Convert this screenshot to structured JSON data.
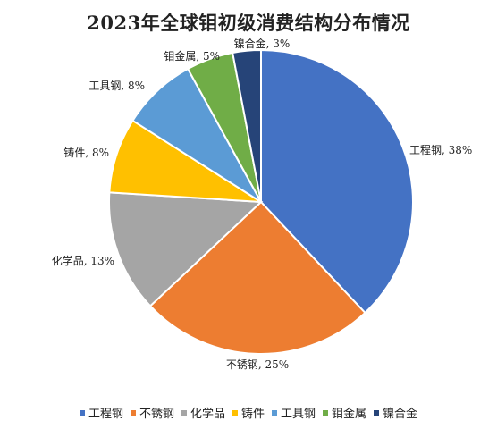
{
  "chart_data": {
    "type": "pie",
    "title": "2023年全球钼初级消费结构分布情况",
    "categories": [
      "工程钢",
      "不锈钢",
      "化学品",
      "铸件",
      "工具钢",
      "钼金属",
      "镍合金"
    ],
    "values": [
      38,
      25,
      13,
      8,
      8,
      5,
      3
    ],
    "value_unit": "%",
    "colors": [
      "#4472C4",
      "#ED7D31",
      "#A5A5A5",
      "#FFC000",
      "#5B9BD5",
      "#70AD47",
      "#264478"
    ],
    "data_labels": [
      "工程钢, 38%",
      "不锈钢, 25%",
      "化学品, 13%",
      "铸件, 8%",
      "工具钢, 8%",
      "钼金属, 5%",
      "镍合金, 3%"
    ],
    "start_angle": "12 o'clock",
    "direction": "clockwise",
    "legend_position": "bottom"
  }
}
